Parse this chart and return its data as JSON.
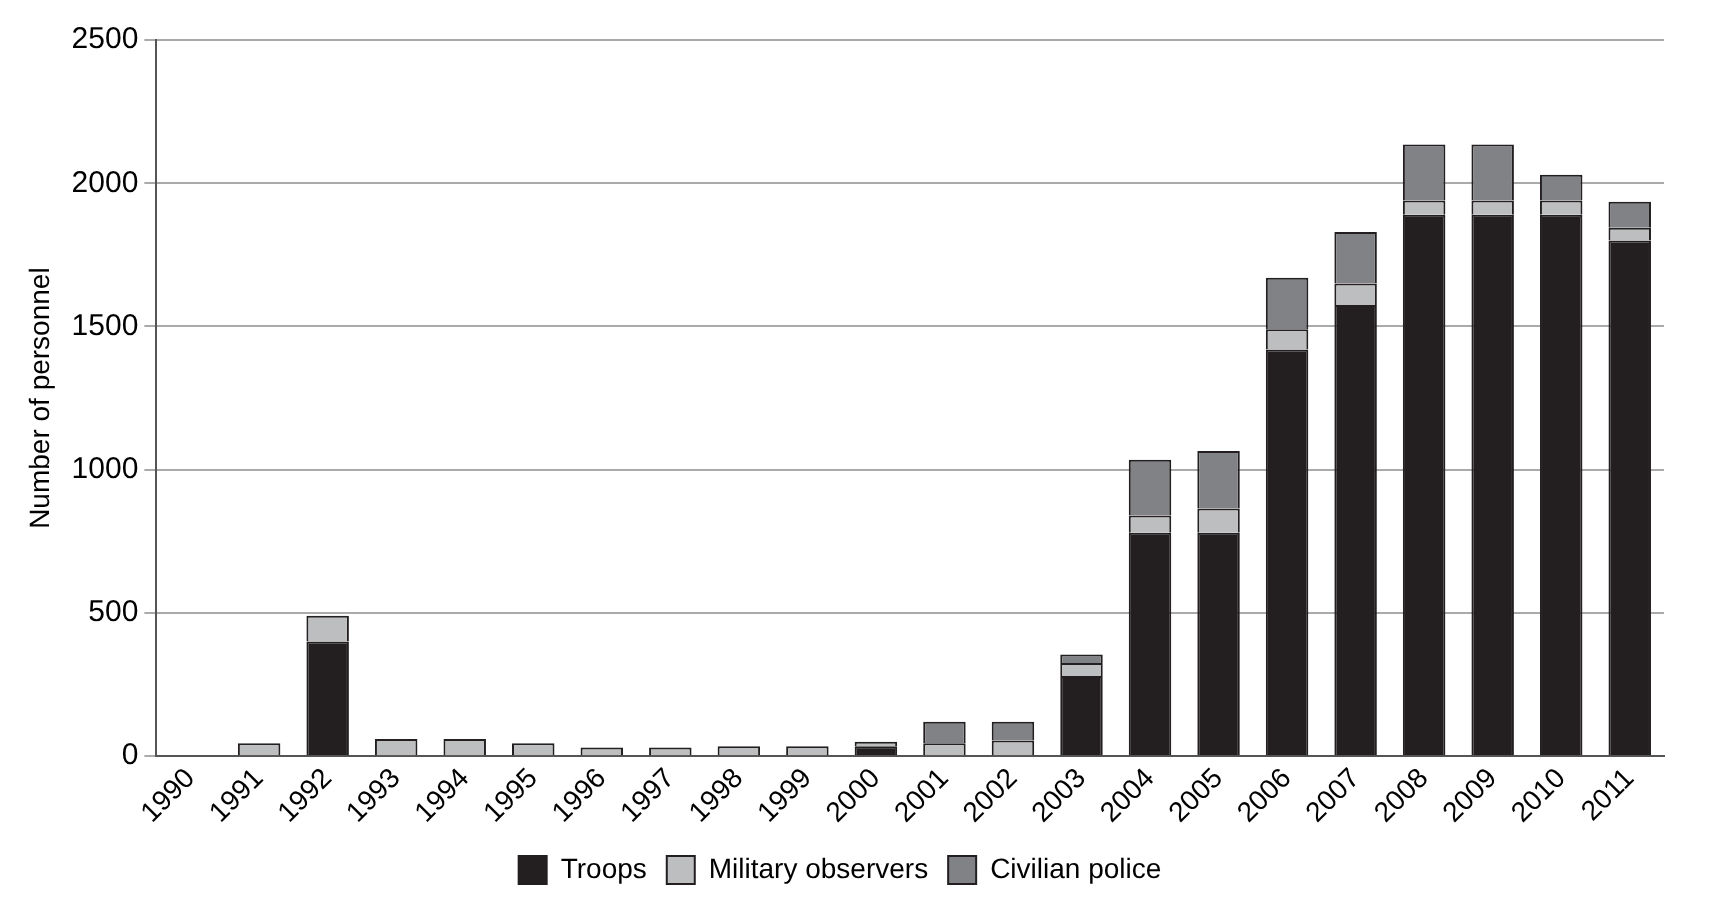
{
  "chart_data": {
    "type": "bar",
    "stacked": true,
    "ylabel": "Number of personnel",
    "categories": [
      "1990",
      "1991",
      "1992",
      "1993",
      "1994",
      "1995",
      "1996",
      "1997",
      "1998",
      "1999",
      "2000",
      "2001",
      "2002",
      "2003",
      "2004",
      "2005",
      "2006",
      "2007",
      "2008",
      "2009",
      "2010",
      "2011"
    ],
    "series": [
      {
        "name": "Troops",
        "color": "#231f20",
        "values": [
          0,
          0,
          400,
          0,
          0,
          0,
          0,
          0,
          0,
          0,
          35,
          0,
          0,
          280,
          780,
          780,
          1420,
          1575,
          1890,
          1890,
          1890,
          1800
        ]
      },
      {
        "name": "Military observers",
        "color": "#bcbec0",
        "values": [
          0,
          45,
          90,
          60,
          60,
          45,
          30,
          30,
          35,
          35,
          15,
          45,
          55,
          45,
          60,
          85,
          70,
          75,
          50,
          50,
          50,
          45
        ]
      },
      {
        "name": "Civilian police",
        "color": "#808285",
        "values": [
          0,
          0,
          0,
          0,
          0,
          0,
          0,
          0,
          0,
          0,
          0,
          75,
          65,
          30,
          195,
          200,
          180,
          180,
          195,
          195,
          90,
          90
        ]
      }
    ],
    "ylim": [
      0,
      2500
    ],
    "yticks": [
      0,
      500,
      1000,
      1500,
      2000,
      2500
    ],
    "grid": "y",
    "legend": "bottom"
  }
}
